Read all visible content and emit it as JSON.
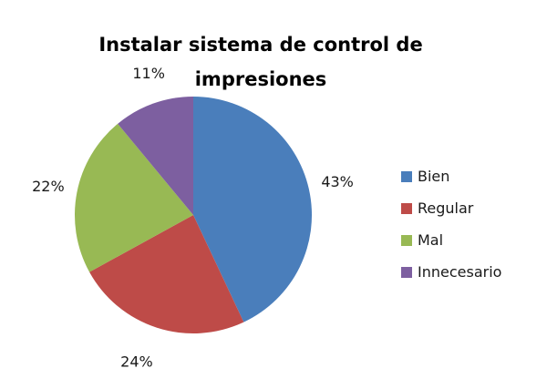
{
  "chart_data": {
    "type": "pie",
    "title_line1": "Instalar sistema de control de",
    "title_line2": "impresiones",
    "slices": [
      {
        "name": "Bien",
        "value": 43,
        "label": "43%",
        "color": "#4a7ebb"
      },
      {
        "name": "Regular",
        "value": 24,
        "label": "24%",
        "color": "#be4b48"
      },
      {
        "name": "Mal",
        "value": 22,
        "label": "22%",
        "color": "#98b954"
      },
      {
        "name": "Innecesario",
        "value": 11,
        "label": "11%",
        "color": "#7d5fa0"
      }
    ],
    "legend_position": "right"
  }
}
